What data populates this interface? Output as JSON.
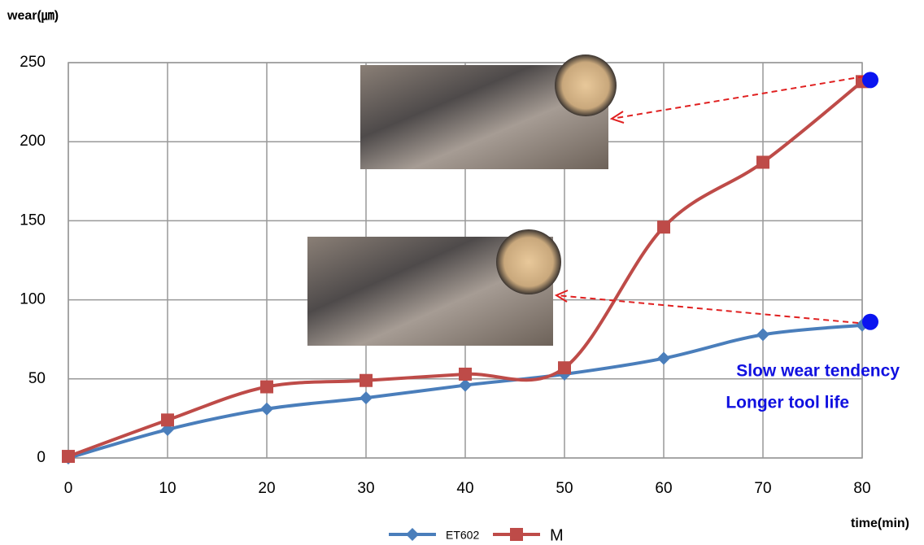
{
  "chart_data": {
    "type": "line",
    "y_label": "wear(㎛)",
    "x_label": "time(min)",
    "x": [
      0,
      10,
      20,
      30,
      40,
      50,
      60,
      70,
      80
    ],
    "series": [
      {
        "name": "ET602",
        "color": "#4a7ebb",
        "marker": "diamond",
        "values": [
          0,
          18,
          31,
          38,
          46,
          53,
          63,
          78,
          84
        ]
      },
      {
        "name": "M",
        "color": "#be4b48",
        "marker": "square",
        "values": [
          1,
          24,
          45,
          49,
          53,
          57,
          146,
          187,
          238
        ]
      }
    ],
    "xlim": [
      0,
      80
    ],
    "xticks": [
      0,
      10,
      20,
      30,
      40,
      50,
      60,
      70,
      80
    ],
    "ylim": [
      0,
      250
    ],
    "yticks": [
      0,
      50,
      100,
      150,
      200,
      250
    ],
    "grid": true,
    "legend": "bottom",
    "annotations": [
      "Slow wear tendency",
      "Longer tool life"
    ]
  }
}
